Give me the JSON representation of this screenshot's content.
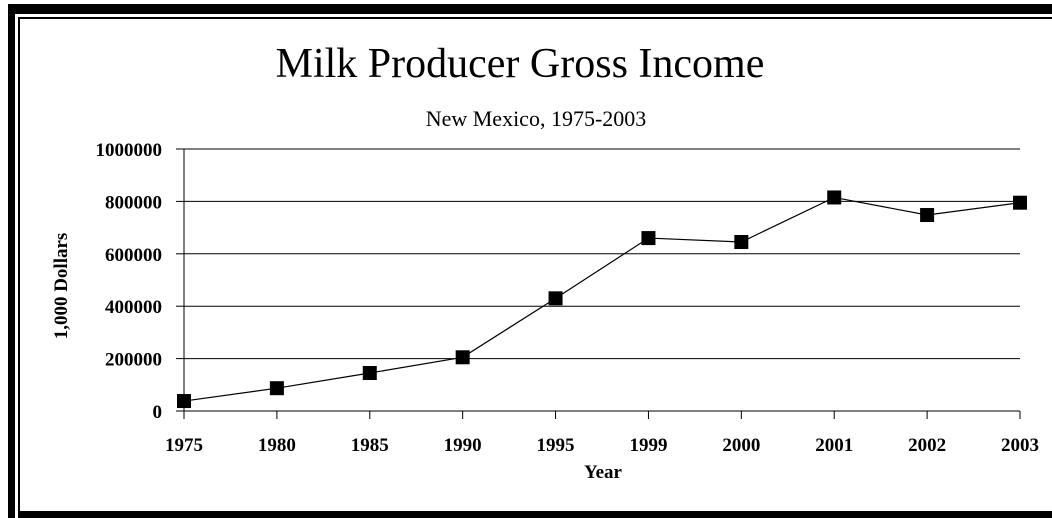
{
  "chart_data": {
    "type": "line",
    "title": "Milk Producer Gross Income",
    "subtitle": "New Mexico, 1975-2003",
    "xlabel": "Year",
    "ylabel": "1,000 Dollars",
    "categories": [
      "1975",
      "1980",
      "1985",
      "1990",
      "1995",
      "1999",
      "2000",
      "2001",
      "2002",
      "2003"
    ],
    "series": [
      {
        "values": [
          38000,
          87000,
          145000,
          205000,
          430000,
          660000,
          645000,
          815000,
          748000,
          795000
        ]
      }
    ],
    "ylim": [
      0,
      1000000
    ],
    "yticks": [
      "0",
      "200000",
      "400000",
      "600000",
      "800000",
      "1000000"
    ],
    "grid": true,
    "legend": "none",
    "colors": {
      "line": "#000000",
      "marker": "#000000",
      "grid": "#000000"
    }
  }
}
